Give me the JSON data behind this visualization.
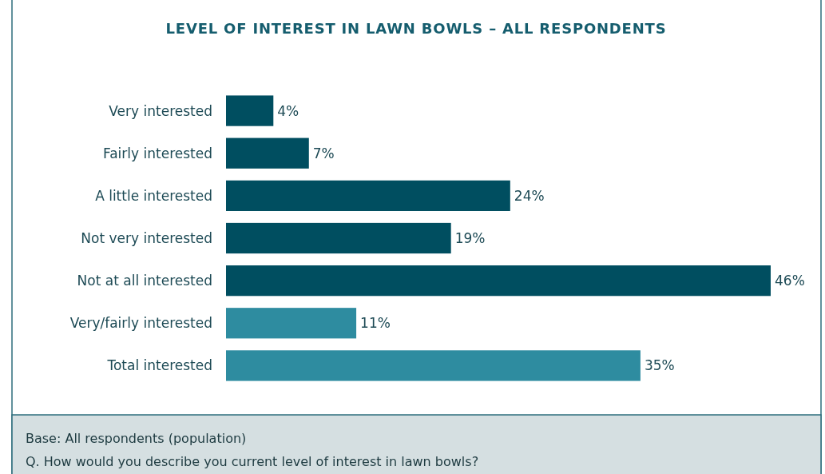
{
  "chart_data": {
    "type": "bar",
    "orientation": "horizontal",
    "title": "LEVEL OF INTEREST IN LAWN BOWLS – ALL RESPONDENTS",
    "categories": [
      "Very interested",
      "Fairly interested",
      "A little interested",
      "Not very interested",
      "Not at all interested",
      "Very/fairly interested",
      "Total interested"
    ],
    "values": [
      4,
      7,
      24,
      19,
      46,
      11,
      35
    ],
    "colors": [
      "#004e60",
      "#004e60",
      "#004e60",
      "#004e60",
      "#004e60",
      "#2e8ca0",
      "#2e8ca0"
    ],
    "value_labels": [
      "4%",
      "7%",
      "24%",
      "19%",
      "46%",
      "11%",
      "35%"
    ],
    "annotations": [
      "Base: All respondents (population)",
      "Q. How would you describe you current level of interest in lawn bowls?"
    ]
  }
}
